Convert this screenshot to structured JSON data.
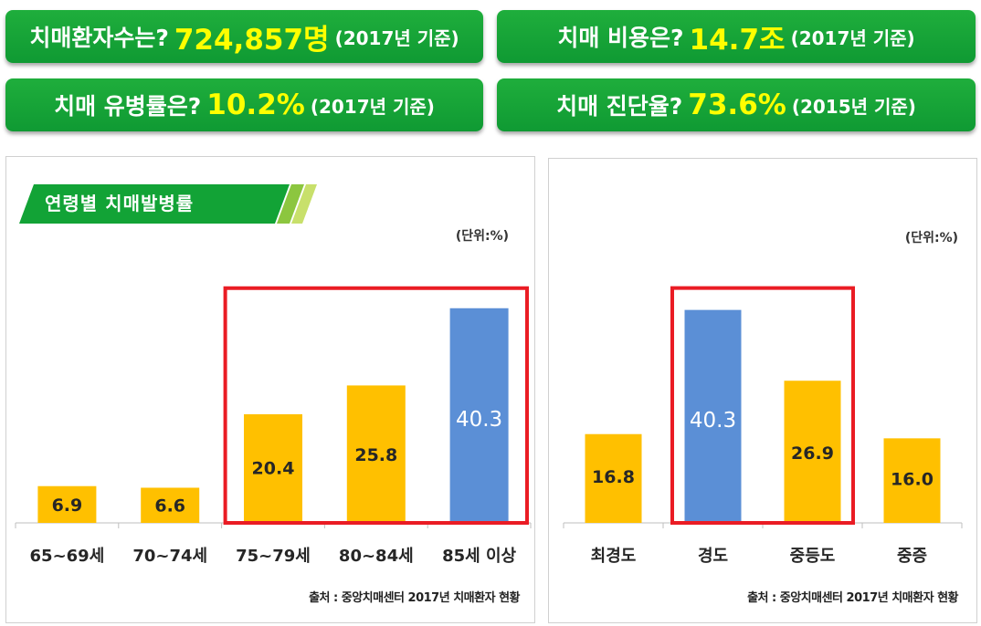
{
  "stats": [
    {
      "question": "치매환자수는?",
      "value": "724,857명",
      "note": "(2017년 기준)"
    },
    {
      "question": "치매 비용은?",
      "value": "14.7조",
      "note": "(2017년 기준)"
    },
    {
      "question": "치매 유병률은?",
      "value": "10.2%",
      "note": "(2017년 기준)"
    },
    {
      "question": "치매 진단율?",
      "value": "73.6%",
      "note": "(2015년 기준)"
    }
  ],
  "colors": {
    "green": "#12a336",
    "bar": "#ffc000",
    "highlight_bar": "#5b8fd6",
    "box": "#ea1c24"
  },
  "chart_data": [
    {
      "type": "bar",
      "title": "연령별 치매발병률",
      "unit": "(단위:%)",
      "source": "출처 : 중앙치매센터 2017년 치매환자 현황",
      "categories": [
        "65~69세",
        "70~74세",
        "75~79세",
        "80~84세",
        "85세 이상"
      ],
      "values": [
        6.9,
        6.6,
        20.4,
        25.8,
        40.3
      ],
      "value_labels": [
        "6.9",
        "6.6",
        "20.4",
        "25.8",
        "40.3"
      ],
      "highlight_index": 4,
      "boxed_range": [
        2,
        4
      ],
      "ylim": [
        0,
        43
      ]
    },
    {
      "type": "bar",
      "title": "",
      "unit": "(단위:%)",
      "source": "출처 : 중앙치매센터 2017년 치매환자 현황",
      "categories": [
        "최경도",
        "경도",
        "중등도",
        "중증"
      ],
      "values": [
        16.8,
        40.3,
        26.9,
        16.0
      ],
      "value_labels": [
        "16.8",
        "40.3",
        "26.9",
        "16.0"
      ],
      "highlight_index": 1,
      "boxed_range": [
        1,
        2
      ],
      "ylim": [
        0,
        43
      ]
    }
  ]
}
